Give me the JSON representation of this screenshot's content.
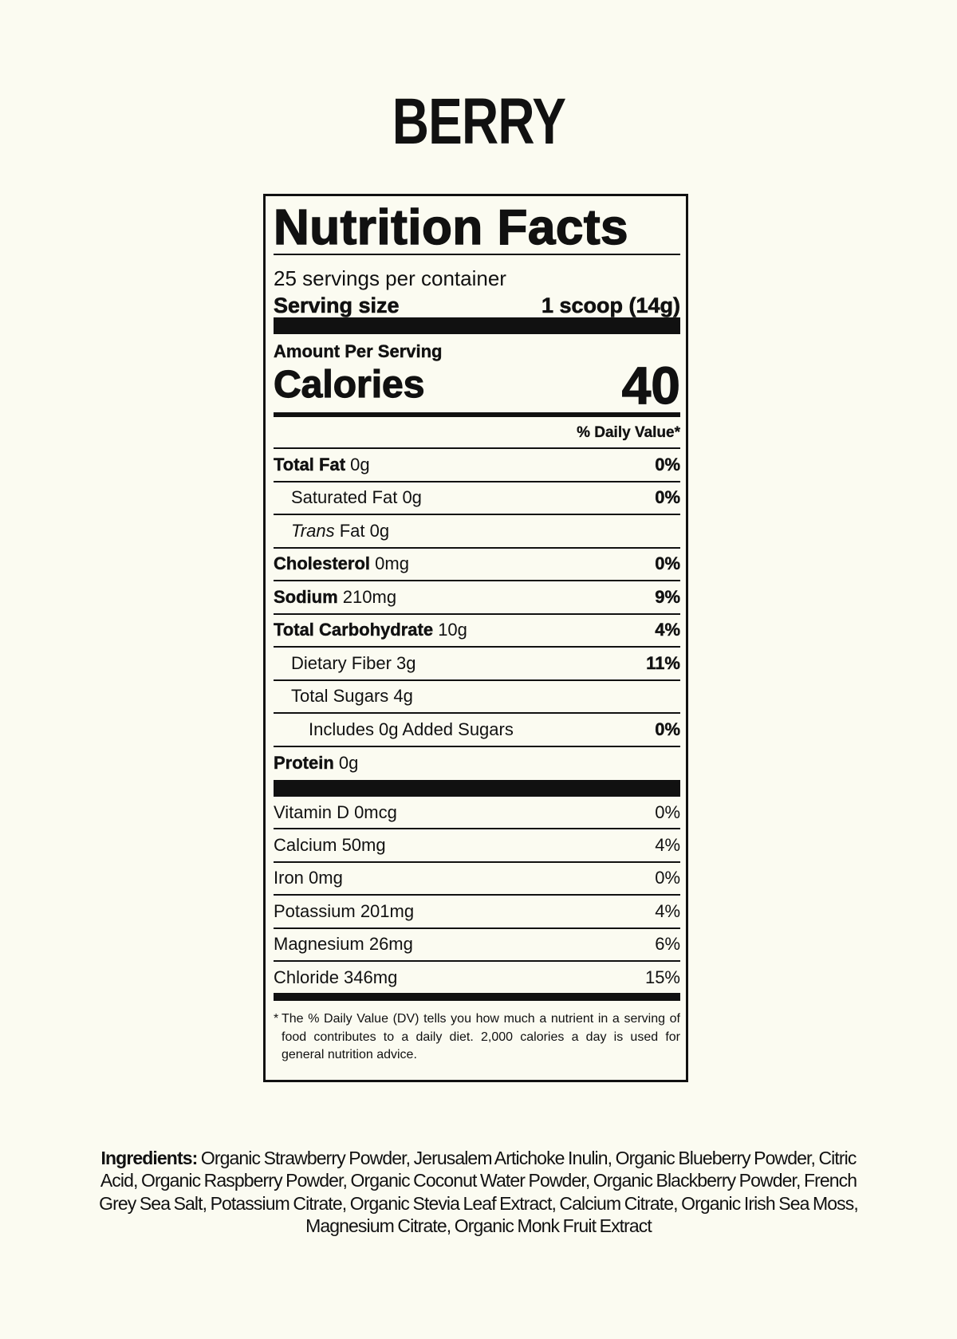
{
  "product": {
    "flavor": "BERRY"
  },
  "label": {
    "title": "Nutrition Facts",
    "servings_per_container": "25 servings per container",
    "serving_size_label": "Serving size",
    "serving_size_value": "1 scoop (14g)",
    "amount_per_serving": "Amount Per Serving",
    "calories_label": "Calories",
    "calories_value": "40",
    "daily_value_header": "% Daily Value*",
    "nutrients": [
      {
        "name": "Total Fat",
        "amount": "0g",
        "dv": "0%"
      },
      {
        "name": "Saturated Fat",
        "amount": "0g",
        "dv": "0%"
      },
      {
        "name_italic": "Trans",
        "name": "Fat",
        "amount": "0g",
        "dv": ""
      },
      {
        "name": "Cholesterol",
        "amount": "0mg",
        "dv": "0%"
      },
      {
        "name": "Sodium",
        "amount": "210mg",
        "dv": "9%"
      },
      {
        "name": "Total Carbohydrate",
        "amount": "10g",
        "dv": "4%"
      },
      {
        "name": "Dietary Fiber",
        "amount": "3g",
        "dv": "11%"
      },
      {
        "name": "Total Sugars",
        "amount": "4g",
        "dv": ""
      },
      {
        "name": "Includes 0g Added Sugars",
        "amount": "",
        "dv": "0%"
      },
      {
        "name": "Protein",
        "amount": "0g",
        "dv": ""
      }
    ],
    "vitamins": [
      {
        "name": "Vitamin D 0mcg",
        "dv": "0%"
      },
      {
        "name": "Calcium 50mg",
        "dv": "4%"
      },
      {
        "name": "Iron 0mg",
        "dv": "0%"
      },
      {
        "name": "Potassium 201mg",
        "dv": "4%"
      },
      {
        "name": "Magnesium 26mg",
        "dv": "6%"
      },
      {
        "name": "Chloride 346mg",
        "dv": "15%"
      }
    ],
    "footnote_marker": "*",
    "footnote": "The % Daily Value (DV) tells you how much a nutrient in a serving of food contributes to a daily diet. 2,000 calories a day is used for general nutrition advice."
  },
  "ingredients": {
    "label": "Ingredients:",
    "text": "Organic Strawberry Powder, Jerusalem Artichoke Inulin, Organic Blueberry Powder, Citric Acid, Organic Raspberry Powder, Organic Coconut Water Powder, Organic Blackberry Powder, French Grey Sea Salt, Potassium Citrate, Organic Stevia Leaf Extract, Calcium Citrate, Organic Irish Sea Moss, Magnesium Citrate, Organic Monk Fruit Extract"
  }
}
